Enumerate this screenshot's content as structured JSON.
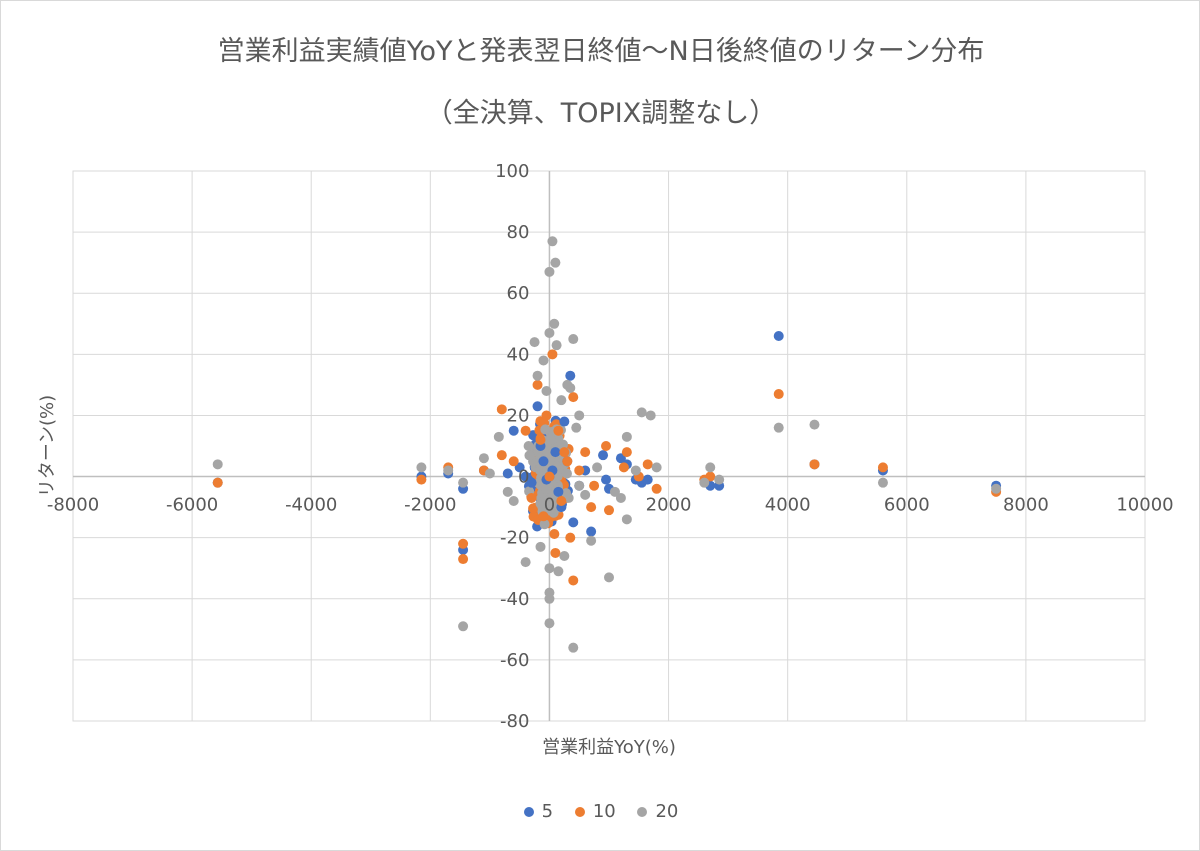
{
  "chart_data": {
    "type": "scatter",
    "title": "営業利益実績値YoYと発表翌日終値～N日後終値のリターン分布",
    "subtitle": "（全決算、TOPIX調整なし）",
    "xlabel": "営業利益YoY(%)",
    "ylabel": "リターン(%)",
    "xlim": [
      -8000,
      10000
    ],
    "ylim": [
      -80,
      100
    ],
    "x_ticks": [
      "-8000",
      "-6000",
      "-4000",
      "-2000",
      "0",
      "2000",
      "4000",
      "6000",
      "8000",
      "10000"
    ],
    "y_ticks": [
      "100",
      "80",
      "60",
      "40",
      "20",
      "0",
      "-20",
      "-40",
      "-60",
      "-80"
    ],
    "grid": true,
    "legend_position": "bottom",
    "colors": {
      "5": "#4472c4",
      "10": "#ed7d31",
      "20": "#a5a5a5"
    },
    "series": [
      {
        "name": "5",
        "color": "#4472c4",
        "points": [
          [
            -5570,
            -2
          ],
          [
            -2150,
            0
          ],
          [
            -1700,
            1
          ],
          [
            -1450,
            -4
          ],
          [
            -1450,
            -24
          ],
          [
            -1100,
            2
          ],
          [
            -700,
            1
          ],
          [
            -600,
            15
          ],
          [
            -500,
            3
          ],
          [
            -400,
            0
          ],
          [
            -300,
            -2
          ],
          [
            -200,
            23
          ],
          [
            -150,
            10
          ],
          [
            -100,
            5
          ],
          [
            -50,
            -1
          ],
          [
            0,
            0
          ],
          [
            50,
            2
          ],
          [
            100,
            8
          ],
          [
            150,
            -5
          ],
          [
            200,
            -10
          ],
          [
            250,
            18
          ],
          [
            300,
            5
          ],
          [
            350,
            33
          ],
          [
            400,
            -15
          ],
          [
            500,
            -3
          ],
          [
            600,
            2
          ],
          [
            700,
            -18
          ],
          [
            900,
            7
          ],
          [
            950,
            -1
          ],
          [
            1000,
            -4
          ],
          [
            1200,
            6
          ],
          [
            1300,
            4
          ],
          [
            1450,
            -1
          ],
          [
            1550,
            -2
          ],
          [
            1650,
            -1
          ],
          [
            2700,
            -3
          ],
          [
            2850,
            -3
          ],
          [
            3850,
            46
          ],
          [
            4450,
            4
          ],
          [
            5600,
            2
          ],
          [
            7500,
            -3
          ]
        ]
      },
      {
        "name": "10",
        "color": "#ed7d31",
        "points": [
          [
            -5570,
            -2
          ],
          [
            -2150,
            -1
          ],
          [
            -1700,
            3
          ],
          [
            -1450,
            -22
          ],
          [
            -1450,
            -27
          ],
          [
            -1100,
            2
          ],
          [
            -800,
            22
          ],
          [
            -800,
            7
          ],
          [
            -600,
            5
          ],
          [
            -400,
            15
          ],
          [
            -300,
            -7
          ],
          [
            -200,
            30
          ],
          [
            -150,
            12
          ],
          [
            -100,
            -13
          ],
          [
            -50,
            20
          ],
          [
            0,
            0
          ],
          [
            50,
            40
          ],
          [
            100,
            -25
          ],
          [
            150,
            15
          ],
          [
            200,
            -8
          ],
          [
            250,
            8
          ],
          [
            300,
            5
          ],
          [
            350,
            -20
          ],
          [
            400,
            26
          ],
          [
            400,
            -34
          ],
          [
            500,
            2
          ],
          [
            600,
            8
          ],
          [
            700,
            -10
          ],
          [
            750,
            -3
          ],
          [
            950,
            10
          ],
          [
            1000,
            -11
          ],
          [
            1250,
            3
          ],
          [
            1300,
            8
          ],
          [
            1500,
            0
          ],
          [
            1650,
            4
          ],
          [
            1800,
            -4
          ],
          [
            2600,
            -1
          ],
          [
            2700,
            0
          ],
          [
            3850,
            27
          ],
          [
            4450,
            4
          ],
          [
            5600,
            3
          ],
          [
            7500,
            -5
          ]
        ]
      },
      {
        "name": "20",
        "color": "#a5a5a5",
        "points": [
          [
            -5570,
            4
          ],
          [
            -2150,
            3
          ],
          [
            -1700,
            2
          ],
          [
            -1450,
            -49
          ],
          [
            -1450,
            -2
          ],
          [
            -1100,
            6
          ],
          [
            -1000,
            1
          ],
          [
            -850,
            13
          ],
          [
            -700,
            -5
          ],
          [
            -600,
            -8
          ],
          [
            -400,
            -28
          ],
          [
            -350,
            10
          ],
          [
            -250,
            44
          ],
          [
            -200,
            33
          ],
          [
            -150,
            -23
          ],
          [
            -100,
            38
          ],
          [
            -50,
            28
          ],
          [
            0,
            67
          ],
          [
            0,
            47
          ],
          [
            0,
            -48
          ],
          [
            0,
            -38
          ],
          [
            0,
            -40
          ],
          [
            0,
            -30
          ],
          [
            50,
            77
          ],
          [
            80,
            50
          ],
          [
            100,
            70
          ],
          [
            120,
            43
          ],
          [
            150,
            -31
          ],
          [
            200,
            25
          ],
          [
            250,
            -26
          ],
          [
            300,
            30
          ],
          [
            350,
            29
          ],
          [
            400,
            45
          ],
          [
            400,
            -56
          ],
          [
            450,
            16
          ],
          [
            500,
            20
          ],
          [
            500,
            -3
          ],
          [
            600,
            -6
          ],
          [
            700,
            -21
          ],
          [
            800,
            3
          ],
          [
            1000,
            -33
          ],
          [
            1100,
            -5
          ],
          [
            1200,
            -7
          ],
          [
            1300,
            13
          ],
          [
            1300,
            -14
          ],
          [
            1450,
            2
          ],
          [
            1550,
            21
          ],
          [
            1700,
            20
          ],
          [
            1800,
            3
          ],
          [
            2600,
            -2
          ],
          [
            2700,
            3
          ],
          [
            2850,
            -1
          ],
          [
            3850,
            16
          ],
          [
            4450,
            17
          ],
          [
            5600,
            -2
          ],
          [
            7500,
            -4
          ]
        ]
      }
    ]
  }
}
